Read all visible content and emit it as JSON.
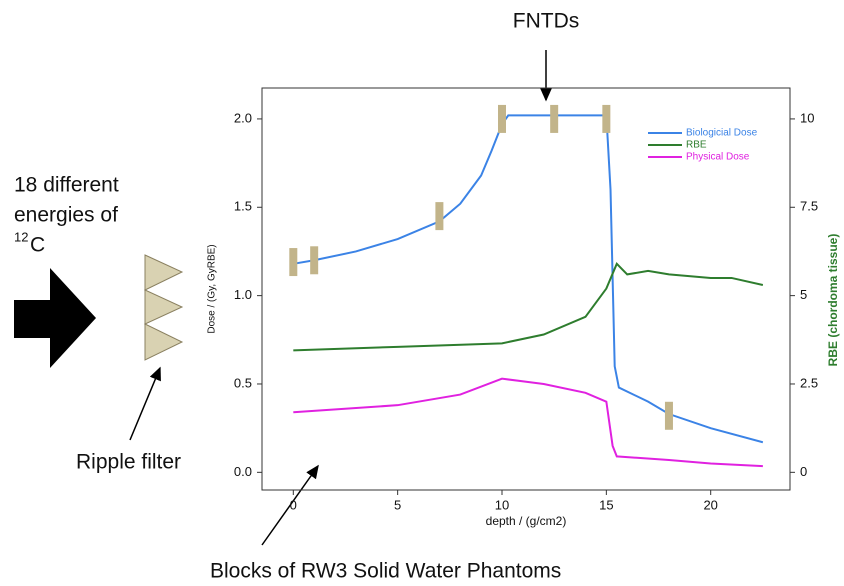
{
  "chart_data": {
    "type": "line",
    "x_label": "depth / (g/cm2)",
    "y_label": "Dose / (Gy, GyRBE)",
    "y2_label": "RBE (chordoma tissue)",
    "xlim": [
      -1.5,
      23.8
    ],
    "ylim": [
      -0.1,
      2.175
    ],
    "y2lim": [
      -0.5,
      10.875
    ],
    "xticks": [
      0,
      5,
      10,
      15,
      20
    ],
    "yticks": [
      {
        "value": 0,
        "label": "0.0"
      },
      {
        "value": 0.5,
        "label": "0.5"
      },
      {
        "value": 1,
        "label": "1.0"
      },
      {
        "value": 1.5,
        "label": "1.5"
      },
      {
        "value": 2,
        "label": "2.0"
      }
    ],
    "y2ticks": [
      0,
      2.5,
      5,
      7.5,
      10
    ],
    "series": [
      {
        "name": "Biologicial Dose",
        "color": "#3b83e6",
        "x": [
          0,
          1,
          3,
          5,
          7,
          8,
          9,
          9.5,
          10,
          10.3,
          12,
          14,
          15,
          15.2,
          15.4,
          15.6,
          17,
          18,
          20,
          22.5
        ],
        "values": [
          1.18,
          1.2,
          1.25,
          1.32,
          1.42,
          1.52,
          1.68,
          1.82,
          1.97,
          2.02,
          2.02,
          2.02,
          2.02,
          1.6,
          0.6,
          0.48,
          0.4,
          0.33,
          0.25,
          0.17
        ]
      },
      {
        "name": "RBE",
        "color": "#2e7d2e",
        "axis": "y2",
        "x": [
          0,
          5,
          10,
          12,
          14,
          15,
          15.5,
          16,
          17,
          18,
          20,
          21,
          22.5
        ],
        "values": [
          3.45,
          3.55,
          3.65,
          3.9,
          4.4,
          5.2,
          5.9,
          5.6,
          5.7,
          5.6,
          5.5,
          5.5,
          5.3
        ]
      },
      {
        "name": "Physical Dose",
        "color": "#e021e0",
        "x": [
          0,
          5,
          8,
          10,
          12,
          14,
          15,
          15.3,
          15.5,
          18,
          20,
          22.5
        ],
        "values": [
          0.34,
          0.38,
          0.44,
          0.53,
          0.5,
          0.45,
          0.4,
          0.15,
          0.09,
          0.07,
          0.05,
          0.035
        ]
      }
    ],
    "fntd_markers": {
      "color": "#c2b48a",
      "x": [
        0,
        1,
        7,
        10,
        12.5,
        15,
        18
      ],
      "y": [
        1.19,
        1.2,
        1.45,
        2.0,
        2.0,
        2.0,
        0.32
      ]
    },
    "annotations": {
      "fntd": "FNTDs",
      "energies": [
        "18 different",
        "energies of"
      ],
      "isotope_mass": "12",
      "isotope_symbol": "C",
      "ripple": "Ripple filter",
      "phantom": "Blocks of RW3 Solid Water Phantoms"
    }
  }
}
